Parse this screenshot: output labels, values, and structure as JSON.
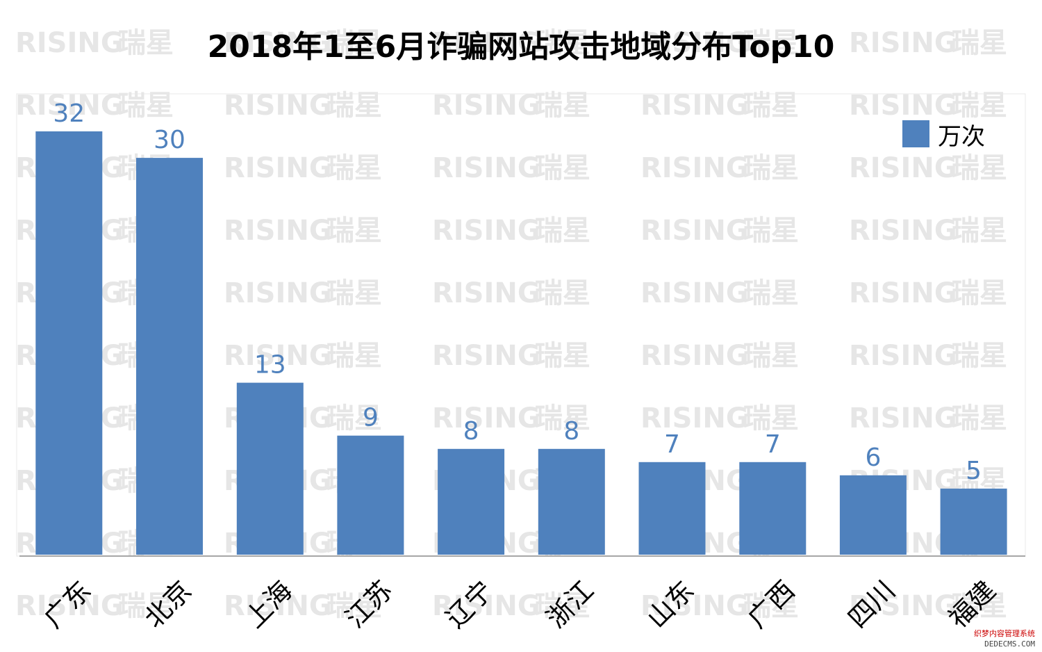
{
  "watermark": {
    "latin": "RISING",
    "cjk": "瑞星"
  },
  "footer": {
    "line1": "织梦内容管理系统",
    "line2": "DEDECMS.COM"
  },
  "colors": {
    "bar": "#4f81bd",
    "label": "#4f81bd",
    "axis": "#a6a6a6",
    "plot_border": "#e8e8e8"
  },
  "chart_data": {
    "type": "bar",
    "title": "2018年1至6月诈骗网站攻击地域分布Top10",
    "categories": [
      "广东",
      "北京",
      "上海",
      "江苏",
      "辽宁",
      "浙江",
      "山东",
      "广西",
      "四川",
      "福建"
    ],
    "series": [
      {
        "name": "万次",
        "values": [
          32,
          30,
          13,
          9,
          8,
          8,
          7,
          7,
          6,
          5
        ]
      }
    ],
    "data_labels": true,
    "legend_position": "top-right",
    "ylim": [
      0,
      35
    ],
    "grid": false,
    "xlabel": "",
    "ylabel": ""
  }
}
